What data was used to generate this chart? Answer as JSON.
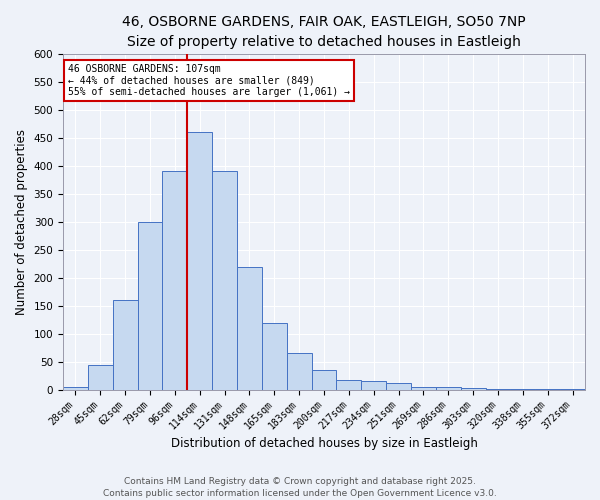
{
  "title_line1": "46, OSBORNE GARDENS, FAIR OAK, EASTLEIGH, SO50 7NP",
  "title_line2": "Size of property relative to detached houses in Eastleigh",
  "xlabel": "Distribution of detached houses by size in Eastleigh",
  "ylabel": "Number of detached properties",
  "categories": [
    "28sqm",
    "45sqm",
    "62sqm",
    "79sqm",
    "96sqm",
    "114sqm",
    "131sqm",
    "148sqm",
    "165sqm",
    "183sqm",
    "200sqm",
    "217sqm",
    "234sqm",
    "251sqm",
    "269sqm",
    "286sqm",
    "303sqm",
    "320sqm",
    "338sqm",
    "355sqm",
    "372sqm"
  ],
  "values": [
    5,
    45,
    160,
    300,
    390,
    460,
    390,
    220,
    120,
    65,
    35,
    18,
    15,
    12,
    5,
    5,
    3,
    2,
    1,
    1,
    2
  ],
  "bar_color": "#c6d9f0",
  "bar_edge_color": "#4472c4",
  "red_line_x": 5.0,
  "annotation_title": "46 OSBORNE GARDENS: 107sqm",
  "annotation_line2": "← 44% of detached houses are smaller (849)",
  "annotation_line3": "55% of semi-detached houses are larger (1,061) →",
  "annotation_box_color": "#ffffff",
  "annotation_box_edge_color": "#cc0000",
  "red_line_color": "#cc0000",
  "ylim": [
    0,
    600
  ],
  "yticks": [
    0,
    50,
    100,
    150,
    200,
    250,
    300,
    350,
    400,
    450,
    500,
    550,
    600
  ],
  "footer_line1": "Contains HM Land Registry data © Crown copyright and database right 2025.",
  "footer_line2": "Contains public sector information licensed under the Open Government Licence v3.0.",
  "background_color": "#eef2f9",
  "title_fontsize": 10,
  "subtitle_fontsize": 9,
  "tick_fontsize": 7,
  "axis_label_fontsize": 8.5,
  "footer_fontsize": 6.5
}
